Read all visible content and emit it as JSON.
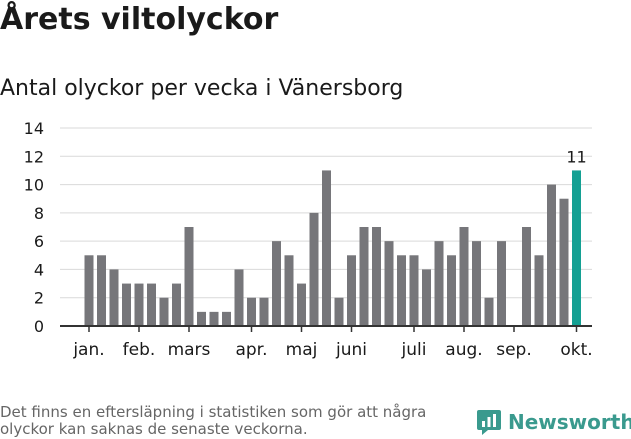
{
  "header": {
    "title": "Årets viltolyckor",
    "subtitle": "Antal olyckor per vecka i Vänersborg"
  },
  "footer": {
    "note": "Det finns en eftersläpning i statistiken som gör att några olyckor kan saknas de senaste veckorna.",
    "brand": "Newsworthy",
    "brand_icon": "newsworthy-logo-icon"
  },
  "colors": {
    "bar": "#76767a",
    "highlight": "#14a093",
    "grid": "#d9d9d9",
    "brand": "#3a9a8e"
  },
  "chart_data": {
    "type": "bar",
    "title": "",
    "xlabel": "",
    "ylabel": "",
    "ylim": [
      0,
      14
    ],
    "yticks": [
      0,
      2,
      4,
      6,
      8,
      10,
      12,
      14
    ],
    "grid": true,
    "x": [
      1,
      2,
      3,
      4,
      5,
      6,
      7,
      8,
      9,
      10,
      11,
      12,
      13,
      14,
      15,
      16,
      17,
      18,
      19,
      20,
      21,
      22,
      23,
      24,
      25,
      26,
      27,
      28,
      29,
      30,
      31,
      32,
      33,
      34,
      35,
      36,
      37,
      38,
      39,
      40
    ],
    "values": [
      5,
      5,
      4,
      3,
      3,
      3,
      2,
      3,
      7,
      1,
      1,
      1,
      4,
      2,
      2,
      6,
      5,
      3,
      8,
      11,
      2,
      5,
      7,
      7,
      6,
      5,
      5,
      4,
      6,
      5,
      7,
      6,
      2,
      6,
      0,
      7,
      5,
      10,
      9,
      11
    ],
    "month_ticks": [
      {
        "label": "jan.",
        "week": 1
      },
      {
        "label": "feb.",
        "week": 5
      },
      {
        "label": "mars",
        "week": 9
      },
      {
        "label": "apr.",
        "week": 14
      },
      {
        "label": "maj",
        "week": 18
      },
      {
        "label": "juni",
        "week": 22
      },
      {
        "label": "juli",
        "week": 27
      },
      {
        "label": "aug.",
        "week": 31
      },
      {
        "label": "sep.",
        "week": 35
      },
      {
        "label": "okt.",
        "week": 40
      }
    ],
    "highlight_index": 39,
    "highlight_label": "11"
  }
}
